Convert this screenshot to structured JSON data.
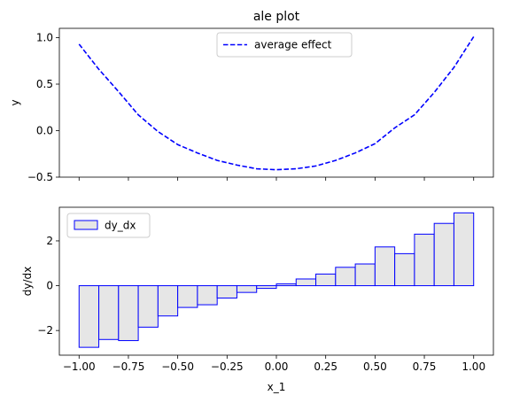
{
  "chart_data": [
    {
      "type": "line",
      "title": "ale plot",
      "xlabel": "",
      "ylabel": "y",
      "xlim": [
        -1.1,
        1.1
      ],
      "ylim": [
        -0.5,
        1.1
      ],
      "xticks": [
        -1.0,
        -0.75,
        -0.5,
        -0.25,
        0.0,
        0.25,
        0.5,
        0.75,
        1.0
      ],
      "xtick_labels_shown": false,
      "yticks": [
        -0.5,
        0.0,
        0.5,
        1.0
      ],
      "ytick_labels": [
        "−0.5",
        "0.0",
        "0.5",
        "1.0"
      ],
      "grid": false,
      "legend_position": "top-center",
      "series": [
        {
          "name": "average effect",
          "color": "#0000ff",
          "style": "dashed",
          "x": [
            -1.0,
            -0.9,
            -0.8,
            -0.7,
            -0.6,
            -0.5,
            -0.4,
            -0.3,
            -0.2,
            -0.1,
            0.0,
            0.1,
            0.2,
            0.3,
            0.4,
            0.5,
            0.6,
            0.7,
            0.8,
            0.9,
            1.0
          ],
          "y": [
            0.93,
            0.66,
            0.42,
            0.17,
            -0.01,
            -0.15,
            -0.24,
            -0.32,
            -0.37,
            -0.41,
            -0.42,
            -0.41,
            -0.38,
            -0.32,
            -0.24,
            -0.14,
            0.03,
            0.17,
            0.41,
            0.68,
            1.01
          ]
        }
      ]
    },
    {
      "type": "bar",
      "title": "",
      "xlabel": "x_1",
      "ylabel": "dy/dx",
      "xlim": [
        -1.1,
        1.1
      ],
      "ylim": [
        -3.1,
        3.5
      ],
      "xticks": [
        -1.0,
        -0.75,
        -0.5,
        -0.25,
        0.0,
        0.25,
        0.5,
        0.75,
        1.0
      ],
      "xtick_labels": [
        "−1.00",
        "−0.75",
        "−0.50",
        "−0.25",
        "0.00",
        "0.25",
        "0.50",
        "0.75",
        "1.00"
      ],
      "yticks": [
        -2,
        0,
        2
      ],
      "ytick_labels": [
        "−2",
        "0",
        "2"
      ],
      "grid": false,
      "legend_position": "top-left",
      "series": [
        {
          "name": "dy_dx",
          "edge_color": "#0000ff",
          "fill_color": "#e6e6e6",
          "bin_edges": [
            -1.0,
            -0.9,
            -0.8,
            -0.7,
            -0.6,
            -0.5,
            -0.4,
            -0.3,
            -0.2,
            -0.1,
            0.0,
            0.1,
            0.2,
            0.3,
            0.4,
            0.5,
            0.6,
            0.7,
            0.8,
            0.9,
            1.0
          ],
          "values": [
            -2.75,
            -2.4,
            -2.45,
            -1.85,
            -1.35,
            -0.97,
            -0.85,
            -0.55,
            -0.3,
            -0.12,
            0.08,
            0.3,
            0.52,
            0.82,
            0.97,
            1.73,
            1.43,
            2.3,
            2.78,
            3.25
          ]
        }
      ]
    }
  ]
}
